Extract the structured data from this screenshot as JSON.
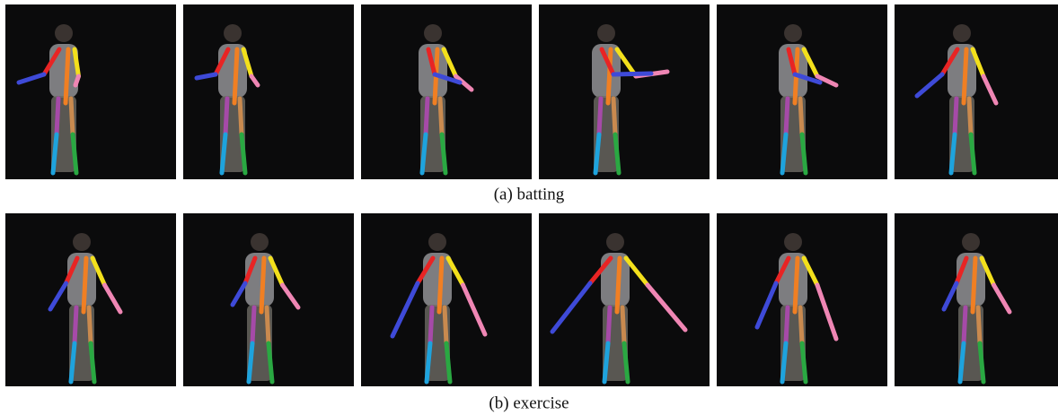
{
  "figure": {
    "panels": [
      {
        "caption": "(a) batting"
      },
      {
        "caption": "(b) exercise"
      }
    ]
  }
}
